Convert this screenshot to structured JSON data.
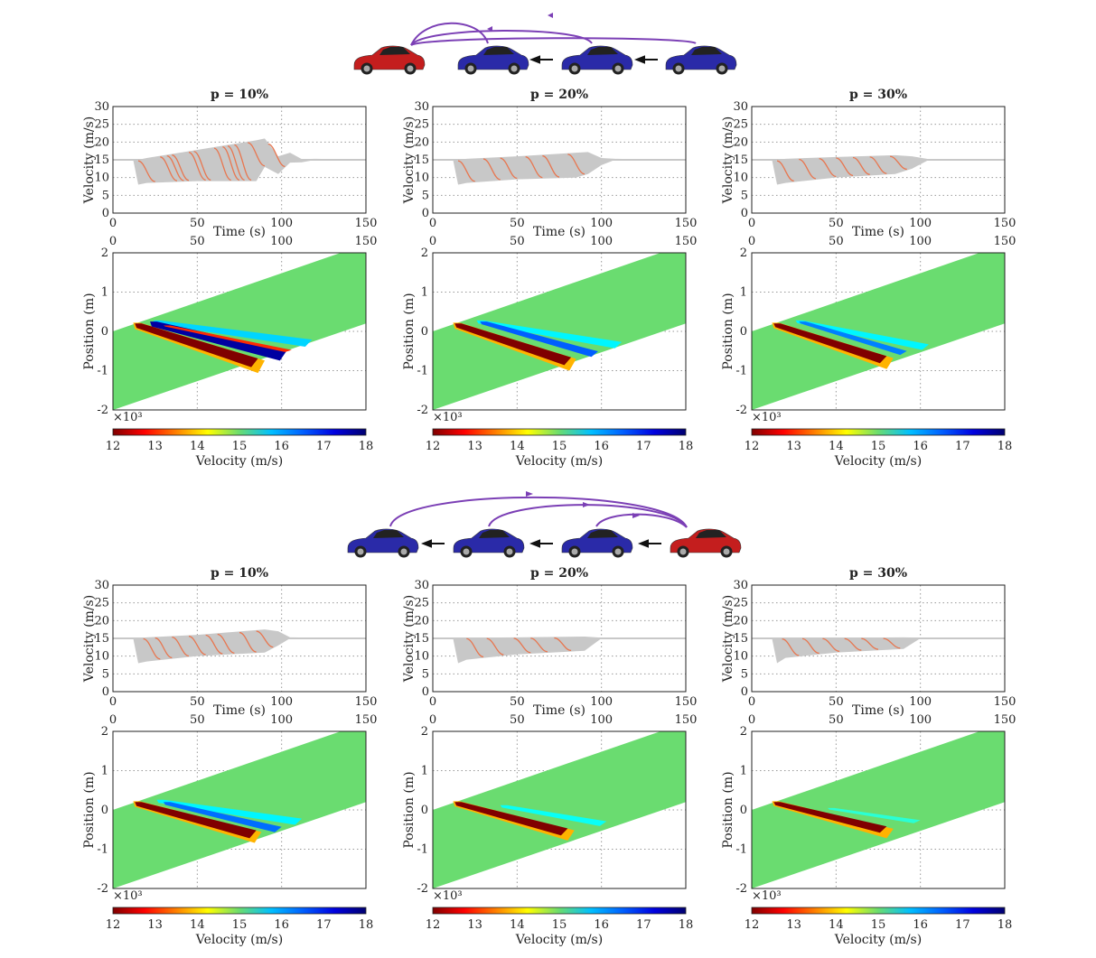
{
  "colors": {
    "av": "#e8764f",
    "hv_band": "#c8c8c8",
    "equilibrium_fill": "#6adc70",
    "arc": "#7b3fb5",
    "av_car": "#c41e1e",
    "hv_car": "#2a2aa8"
  },
  "diagrams": [
    {
      "group": "top",
      "description_cars": [
        "av",
        "hv",
        "hv",
        "hv"
      ],
      "arc_direction": "to-av"
    },
    {
      "group": "bottom",
      "description_cars": [
        "hv",
        "hv",
        "hv",
        "av"
      ],
      "arc_direction": "from-av"
    }
  ],
  "chart_data": {
    "type": "line+heatmap",
    "axes": {
      "velocity_ylabel": "Velocity (m/s)",
      "velocity_xlabel": "Time (s)",
      "velocity_ylim": [
        0,
        30
      ],
      "velocity_yticks": [
        "0",
        "5",
        "10",
        "15",
        "20",
        "25",
        "30"
      ],
      "time_xlim": [
        0,
        150
      ],
      "time_xticks": [
        "0",
        "50",
        "100",
        "150"
      ],
      "position_ylabel": "Position (m)",
      "position_ylim": [
        -2,
        2
      ],
      "position_yticks": [
        "-2",
        "-1",
        "0",
        "1",
        "2"
      ],
      "position_multiplier": "×10³",
      "colorbar_label": "Velocity (m/s)",
      "colorbar_range": [
        12,
        18
      ],
      "colorbar_ticks": [
        "12",
        "13",
        "14",
        "15",
        "16",
        "17",
        "18"
      ],
      "grid": true
    },
    "panels": [
      {
        "title": "p = 10%",
        "group": "top",
        "envelope": {
          "t": [
            0,
            12,
            15,
            20,
            50,
            85,
            90,
            98,
            105,
            112,
            120,
            150
          ],
          "max": [
            15,
            15,
            15,
            15.5,
            17.8,
            20.5,
            21,
            16,
            17,
            15.2,
            15.3,
            15
          ],
          "min": [
            15,
            15,
            8,
            8.5,
            9,
            9,
            13,
            11,
            14.2,
            14.3,
            15,
            15
          ]
        },
        "av_traces_t0": [
          15,
          28,
          32,
          35,
          45,
          48,
          60,
          65,
          68,
          72,
          80,
          92
        ],
        "bands": [
          [
            12,
            0.22,
            90,
            -0.9,
            0.32,
            13.8
          ],
          [
            13,
            0.2,
            86,
            -0.8,
            0.22,
            12
          ],
          [
            24,
            0.28,
            118,
            -0.3,
            0.18,
            16
          ],
          [
            22,
            0.25,
            103,
            -0.62,
            0.25,
            17.8
          ],
          [
            30,
            0.15,
            106,
            -0.5,
            0.05,
            13
          ]
        ]
      },
      {
        "title": "p = 20%",
        "group": "top",
        "envelope": {
          "t": [
            0,
            12,
            15,
            20,
            50,
            85,
            92,
            100,
            108,
            150
          ],
          "max": [
            15,
            15,
            15,
            15.3,
            16,
            17,
            17.2,
            15.5,
            15.3,
            15
          ],
          "min": [
            15,
            15,
            8,
            8.5,
            9.5,
            10,
            11,
            13.5,
            15,
            15
          ]
        },
        "av_traces_t0": [
          15,
          30,
          40,
          55,
          65,
          80
        ],
        "bands": [
          [
            12,
            0.22,
            85,
            -0.85,
            0.3,
            13.8
          ],
          [
            13,
            0.2,
            82,
            -0.76,
            0.2,
            12
          ],
          [
            26,
            0.28,
            112,
            -0.35,
            0.16,
            15.8
          ],
          [
            28,
            0.25,
            98,
            -0.58,
            0.14,
            16.7
          ]
        ]
      },
      {
        "title": "p = 30%",
        "group": "top",
        "envelope": {
          "t": [
            0,
            12,
            15,
            20,
            50,
            85,
            95,
            105,
            150
          ],
          "max": [
            15,
            15,
            15,
            15.3,
            15.8,
            16.3,
            16,
            15.2,
            15
          ],
          "min": [
            15,
            15,
            8,
            8.5,
            10,
            11,
            12.5,
            15,
            15
          ]
        },
        "av_traces_t0": [
          15,
          28,
          40,
          50,
          60,
          70,
          82
        ],
        "bands": [
          [
            12,
            0.22,
            84,
            -0.82,
            0.28,
            13.8
          ],
          [
            13,
            0.2,
            80,
            -0.72,
            0.18,
            12
          ],
          [
            26,
            0.28,
            105,
            -0.4,
            0.14,
            15.8
          ],
          [
            28,
            0.25,
            92,
            -0.55,
            0.1,
            16.5
          ]
        ]
      },
      {
        "title": "p = 10%",
        "group": "bottom",
        "envelope": {
          "t": [
            0,
            12,
            15,
            20,
            50,
            90,
            98,
            105,
            150
          ],
          "max": [
            15,
            15,
            15,
            15.3,
            16,
            17.5,
            17,
            15.3,
            15
          ],
          "min": [
            15,
            15,
            8,
            8.5,
            10,
            11,
            13,
            15,
            15
          ]
        },
        "av_traces_t0": [
          18,
          25,
          35,
          45,
          55,
          62,
          75,
          85
        ],
        "bands": [
          [
            12,
            0.22,
            88,
            -0.7,
            0.28,
            13.8
          ],
          [
            13,
            0.2,
            85,
            -0.62,
            0.2,
            12
          ],
          [
            26,
            0.26,
            112,
            -0.3,
            0.16,
            15.8
          ],
          [
            30,
            0.2,
            100,
            -0.5,
            0.14,
            16.6
          ]
        ]
      },
      {
        "title": "p = 20%",
        "group": "bottom",
        "envelope": {
          "t": [
            0,
            12,
            15,
            20,
            50,
            90,
            100,
            150
          ],
          "max": [
            15,
            15,
            15,
            15.2,
            15.3,
            15.5,
            15.2,
            15
          ],
          "min": [
            15,
            15,
            8,
            9,
            10.5,
            11.5,
            15,
            15
          ]
        },
        "av_traces_t0": [
          20,
          32,
          48,
          58,
          72
        ],
        "bands": [
          [
            12,
            0.22,
            84,
            -0.65,
            0.26,
            13.8
          ],
          [
            13,
            0.2,
            80,
            -0.56,
            0.18,
            12
          ],
          [
            40,
            0.12,
            103,
            -0.35,
            0.12,
            15.7
          ]
        ]
      },
      {
        "title": "p = 30%",
        "group": "bottom",
        "envelope": {
          "t": [
            0,
            12,
            15,
            20,
            50,
            90,
            100,
            150
          ],
          "max": [
            15,
            15,
            15,
            15.2,
            15.2,
            15.3,
            15.2,
            15
          ],
          "min": [
            15,
            15,
            8,
            9.5,
            11,
            12,
            15,
            15
          ]
        },
        "av_traces_t0": [
          18,
          30,
          42,
          55,
          65,
          78
        ],
        "bands": [
          [
            12,
            0.22,
            84,
            -0.6,
            0.24,
            13.8
          ],
          [
            13,
            0.2,
            80,
            -0.5,
            0.16,
            12
          ],
          [
            45,
            0.05,
            100,
            -0.3,
            0.08,
            15.5
          ]
        ]
      }
    ]
  }
}
